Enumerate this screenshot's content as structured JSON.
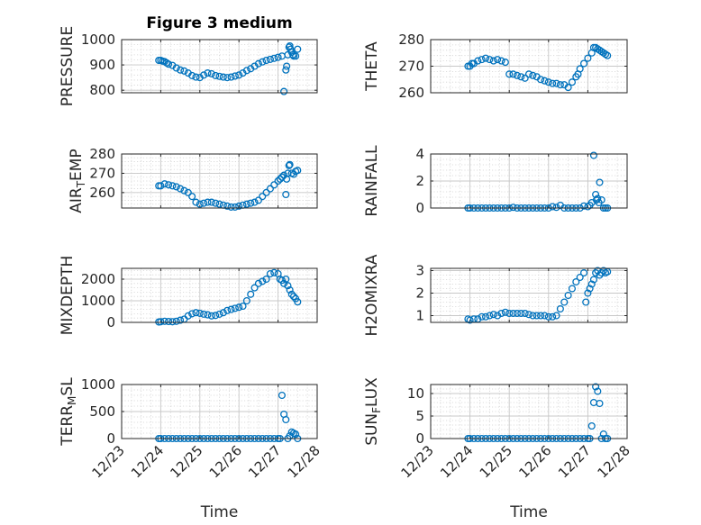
{
  "chart_data": [
    {
      "type": "scatter",
      "title": "Figure 3 medium",
      "ylabel": "PRESSURE",
      "xlabel": "",
      "ylim": [
        790,
        1000
      ],
      "yticks": [
        800,
        900,
        1000
      ],
      "ytick_labels": [
        "800",
        "900",
        "1000"
      ],
      "xlim": [
        0,
        5
      ],
      "xtick_labels": [],
      "grid": true,
      "marker_color": "#0072BD",
      "x": [
        0.95,
        1.0,
        1.05,
        1.1,
        1.15,
        1.2,
        1.3,
        1.4,
        1.5,
        1.6,
        1.7,
        1.8,
        1.9,
        2.0,
        2.1,
        2.2,
        2.3,
        2.4,
        2.5,
        2.6,
        2.7,
        2.8,
        2.9,
        3.0,
        3.1,
        3.2,
        3.3,
        3.4,
        3.5,
        3.6,
        3.7,
        3.8,
        3.9,
        4.0,
        4.1,
        4.15,
        4.2,
        4.22,
        4.25,
        4.28,
        4.3,
        4.32,
        4.35,
        4.38,
        4.4,
        4.45,
        4.5
      ],
      "y": [
        918,
        918,
        915,
        913,
        908,
        903,
        898,
        888,
        880,
        876,
        868,
        858,
        852,
        850,
        860,
        868,
        865,
        858,
        855,
        852,
        850,
        852,
        856,
        860,
        868,
        878,
        885,
        895,
        905,
        912,
        918,
        922,
        926,
        930,
        935,
        795,
        880,
        895,
        940,
        970,
        975,
        962,
        950,
        940,
        935,
        935,
        962
      ]
    },
    {
      "type": "scatter",
      "title": "",
      "ylabel": "THETA",
      "xlabel": "",
      "ylim": [
        260,
        280
      ],
      "yticks": [
        260,
        270,
        280
      ],
      "ytick_labels": [
        "260",
        "270",
        "280"
      ],
      "xlim": [
        0,
        5
      ],
      "xtick_labels": [],
      "grid": true,
      "marker_color": "#0072BD",
      "x": [
        0.95,
        1.0,
        1.05,
        1.1,
        1.2,
        1.3,
        1.4,
        1.5,
        1.6,
        1.7,
        1.8,
        1.9,
        2.0,
        2.1,
        2.2,
        2.3,
        2.4,
        2.5,
        2.6,
        2.7,
        2.8,
        2.9,
        3.0,
        3.1,
        3.2,
        3.3,
        3.4,
        3.5,
        3.6,
        3.7,
        3.75,
        3.8,
        3.9,
        4.0,
        4.1,
        4.15,
        4.2,
        4.25,
        4.3,
        4.35,
        4.4,
        4.45,
        4.5
      ],
      "y": [
        270,
        270,
        271,
        271,
        272,
        272.5,
        273,
        272.5,
        272,
        272.5,
        272,
        271.5,
        267,
        267,
        266.5,
        266,
        265.5,
        267,
        266.5,
        266,
        265,
        264.5,
        264,
        263.5,
        263.5,
        263,
        263,
        262,
        264,
        266,
        267,
        269,
        271,
        273,
        275,
        277,
        277,
        276.5,
        276,
        275.5,
        275,
        274.5,
        274
      ]
    },
    {
      "type": "scatter",
      "title": "",
      "ylabel": "AIR_TEMP",
      "xlabel": "",
      "ylim": [
        252,
        280
      ],
      "yticks": [
        260,
        270,
        280
      ],
      "ytick_labels": [
        "260",
        "270",
        "280"
      ],
      "xlim": [
        0,
        5
      ],
      "xtick_labels": [],
      "grid": true,
      "marker_color": "#0072BD",
      "x": [
        0.95,
        1.0,
        1.1,
        1.2,
        1.3,
        1.4,
        1.5,
        1.6,
        1.7,
        1.8,
        1.9,
        2.0,
        2.1,
        2.2,
        2.3,
        2.4,
        2.5,
        2.6,
        2.7,
        2.8,
        2.9,
        3.0,
        3.1,
        3.2,
        3.3,
        3.4,
        3.5,
        3.6,
        3.7,
        3.8,
        3.9,
        4.0,
        4.05,
        4.1,
        4.15,
        4.2,
        4.22,
        4.25,
        4.28,
        4.3,
        4.35,
        4.4,
        4.45,
        4.5
      ],
      "y": [
        263.5,
        263.5,
        264.5,
        264,
        263.5,
        263,
        262,
        261,
        260,
        258,
        255,
        254,
        254.5,
        255,
        255,
        254.5,
        254,
        253.5,
        253,
        252.5,
        252.5,
        253,
        253.5,
        254,
        254.5,
        255,
        256,
        258,
        260,
        262,
        264,
        266,
        267,
        268,
        269,
        259,
        267,
        270,
        274,
        274.5,
        270,
        269.5,
        271,
        271.5
      ]
    },
    {
      "type": "scatter",
      "title": "",
      "ylabel": "RAINFALL",
      "xlabel": "",
      "ylim": [
        0,
        4
      ],
      "yticks": [
        0,
        2,
        4
      ],
      "ytick_labels": [
        "0",
        "2",
        "4"
      ],
      "xlim": [
        0,
        5
      ],
      "xtick_labels": [],
      "grid": true,
      "marker_color": "#0072BD",
      "x": [
        0.95,
        1.0,
        1.1,
        1.2,
        1.3,
        1.4,
        1.5,
        1.6,
        1.7,
        1.8,
        1.9,
        2.0,
        2.1,
        2.2,
        2.3,
        2.4,
        2.5,
        2.6,
        2.7,
        2.8,
        2.9,
        3.0,
        3.1,
        3.2,
        3.3,
        3.4,
        3.5,
        3.6,
        3.7,
        3.8,
        3.9,
        4.0,
        4.05,
        4.1,
        4.15,
        4.2,
        4.22,
        4.25,
        4.28,
        4.3,
        4.35,
        4.4,
        4.45,
        4.5
      ],
      "y": [
        0,
        0,
        0,
        0,
        0,
        0,
        0,
        0,
        0,
        0,
        0,
        0,
        0.05,
        0,
        0,
        0,
        0,
        0,
        0,
        0,
        0,
        0,
        0.1,
        0.05,
        0.2,
        0,
        0,
        0,
        0,
        0,
        0.15,
        0.1,
        0.2,
        0.4,
        3.9,
        1.0,
        0.6,
        0.7,
        0.4,
        1.9,
        0.6,
        0,
        0,
        0
      ]
    },
    {
      "type": "scatter",
      "title": "",
      "ylabel": "MIXDEPTH",
      "xlabel": "",
      "ylim": [
        0,
        2500
      ],
      "yticks": [
        0,
        1000,
        2000
      ],
      "ytick_labels": [
        "0",
        "1000",
        "2000"
      ],
      "xlim": [
        0,
        5
      ],
      "xtick_labels": [],
      "grid": true,
      "marker_color": "#0072BD",
      "x": [
        0.95,
        1.0,
        1.1,
        1.2,
        1.3,
        1.4,
        1.5,
        1.6,
        1.7,
        1.8,
        1.9,
        2.0,
        2.1,
        2.2,
        2.3,
        2.4,
        2.5,
        2.6,
        2.7,
        2.8,
        2.9,
        3.0,
        3.1,
        3.2,
        3.3,
        3.4,
        3.5,
        3.6,
        3.7,
        3.8,
        3.9,
        4.0,
        4.05,
        4.1,
        4.15,
        4.2,
        4.25,
        4.3,
        4.35,
        4.4,
        4.45,
        4.5
      ],
      "y": [
        20,
        30,
        50,
        40,
        30,
        50,
        100,
        150,
        300,
        400,
        450,
        420,
        380,
        350,
        300,
        320,
        380,
        450,
        550,
        600,
        650,
        700,
        750,
        1000,
        1300,
        1600,
        1800,
        1900,
        2000,
        2250,
        2300,
        2250,
        2000,
        1950,
        1800,
        2000,
        1700,
        1500,
        1300,
        1200,
        1100,
        950
      ]
    },
    {
      "type": "scatter",
      "title": "",
      "ylabel": "H2OMIXRA",
      "xlabel": "",
      "ylim": [
        0.7,
        3.1
      ],
      "yticks": [
        1,
        2,
        3
      ],
      "ytick_labels": [
        "1",
        "2",
        "3"
      ],
      "xlim": [
        0,
        5
      ],
      "xtick_labels": [],
      "grid": true,
      "marker_color": "#0072BD",
      "x": [
        0.95,
        1.0,
        1.1,
        1.2,
        1.3,
        1.4,
        1.5,
        1.6,
        1.7,
        1.8,
        1.9,
        2.0,
        2.1,
        2.2,
        2.3,
        2.4,
        2.5,
        2.6,
        2.7,
        2.8,
        2.9,
        3.0,
        3.1,
        3.2,
        3.3,
        3.4,
        3.5,
        3.6,
        3.7,
        3.8,
        3.9,
        3.95,
        4.0,
        4.05,
        4.1,
        4.15,
        4.2,
        4.25,
        4.3,
        4.35,
        4.4,
        4.45,
        4.5
      ],
      "y": [
        0.85,
        0.8,
        0.85,
        0.85,
        0.95,
        0.95,
        1.0,
        1.05,
        1.0,
        1.1,
        1.15,
        1.1,
        1.1,
        1.1,
        1.1,
        1.1,
        1.05,
        1.0,
        1.0,
        1.0,
        1.0,
        0.95,
        0.95,
        1.0,
        1.3,
        1.6,
        1.9,
        2.2,
        2.5,
        2.7,
        2.9,
        1.6,
        2.0,
        2.2,
        2.4,
        2.6,
        2.9,
        3.0,
        2.8,
        2.9,
        3.0,
        2.9,
        2.95
      ]
    },
    {
      "type": "scatter",
      "title": "",
      "ylabel": "TERR_MSL",
      "xlabel": "Time",
      "ylim": [
        0,
        1000
      ],
      "yticks": [
        0,
        500,
        1000
      ],
      "ytick_labels": [
        "0",
        "500",
        "1000"
      ],
      "xlim": [
        0,
        5
      ],
      "xticks": [
        0,
        1,
        2,
        3,
        4,
        5
      ],
      "xtick_labels": [
        "12/23",
        "12/24",
        "12/25",
        "12/26",
        "12/27",
        "12/28"
      ],
      "grid": true,
      "marker_color": "#0072BD",
      "x": [
        0.95,
        1.0,
        1.1,
        1.2,
        1.3,
        1.4,
        1.5,
        1.6,
        1.7,
        1.8,
        1.9,
        2.0,
        2.1,
        2.2,
        2.3,
        2.4,
        2.5,
        2.6,
        2.7,
        2.8,
        2.9,
        3.0,
        3.1,
        3.2,
        3.3,
        3.4,
        3.5,
        3.6,
        3.7,
        3.8,
        3.9,
        4.0,
        4.05,
        4.1,
        4.15,
        4.2,
        4.25,
        4.3,
        4.35,
        4.4,
        4.45,
        4.5
      ],
      "y": [
        0,
        0,
        0,
        0,
        0,
        0,
        0,
        0,
        0,
        0,
        0,
        0,
        0,
        0,
        0,
        0,
        0,
        0,
        0,
        0,
        0,
        0,
        0,
        0,
        0,
        0,
        0,
        0,
        0,
        0,
        0,
        0,
        0,
        800,
        450,
        350,
        0,
        50,
        120,
        100,
        80,
        0
      ]
    },
    {
      "type": "scatter",
      "title": "",
      "ylabel": "SUN_FLUX",
      "xlabel": "Time",
      "ylim": [
        0,
        12
      ],
      "yticks": [
        0,
        5,
        10
      ],
      "ytick_labels": [
        "0",
        "5",
        "10"
      ],
      "xlim": [
        0,
        5
      ],
      "xticks": [
        0,
        1,
        2,
        3,
        4,
        5
      ],
      "xtick_labels": [
        "12/23",
        "12/24",
        "12/25",
        "12/26",
        "12/27",
        "12/28"
      ],
      "grid": true,
      "marker_color": "#0072BD",
      "x": [
        0.95,
        1.0,
        1.1,
        1.2,
        1.3,
        1.4,
        1.5,
        1.6,
        1.7,
        1.8,
        1.9,
        2.0,
        2.1,
        2.2,
        2.3,
        2.4,
        2.5,
        2.6,
        2.7,
        2.8,
        2.9,
        3.0,
        3.1,
        3.2,
        3.3,
        3.4,
        3.5,
        3.6,
        3.7,
        3.8,
        3.9,
        4.0,
        4.05,
        4.1,
        4.15,
        4.2,
        4.25,
        4.3,
        4.35,
        4.4,
        4.45,
        4.5
      ],
      "y": [
        0,
        0,
        0,
        0,
        0,
        0,
        0,
        0,
        0,
        0,
        0,
        0,
        0,
        0,
        0,
        0,
        0,
        0,
        0,
        0,
        0,
        0,
        0,
        0,
        0,
        0,
        0,
        0,
        0,
        0,
        0,
        0,
        0,
        2.8,
        8.0,
        11.5,
        10.5,
        7.8,
        0,
        1.0,
        0,
        0
      ]
    }
  ]
}
